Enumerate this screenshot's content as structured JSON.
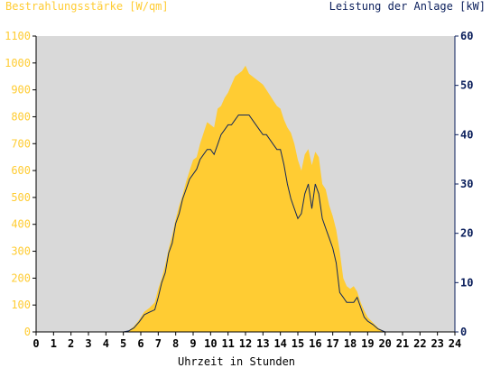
{
  "chart_data": {
    "type": "area",
    "title_left": "Bestrahlungsstärke [W/qm]",
    "title_right": "Leistung der Anlage [kW]",
    "xlabel": "Uhrzeit in Stunden",
    "x_ticks": [
      "0",
      "1",
      "2",
      "3",
      "4",
      "5",
      "6",
      "7",
      "8",
      "9",
      "10",
      "11",
      "12",
      "13",
      "14",
      "15",
      "16",
      "17",
      "18",
      "19",
      "20",
      "21",
      "22",
      "23",
      "24"
    ],
    "xlim": [
      0,
      24
    ],
    "y_left": {
      "ticks": [
        "0",
        "100",
        "200",
        "300",
        "400",
        "500",
        "600",
        "700",
        "800",
        "900",
        "1000",
        "1100"
      ],
      "lim": [
        0,
        1100
      ],
      "color": "#ffcc33"
    },
    "y_right": {
      "ticks": [
        "0",
        "10",
        "20",
        "30",
        "40",
        "50",
        "60"
      ],
      "lim": [
        0,
        60
      ],
      "color": "#0b1f5c"
    },
    "colors": {
      "plot_bg": "#d9d9d9",
      "area": "#ffcc33",
      "line": "#14285a"
    },
    "series": [
      {
        "axis": "left",
        "style": "area",
        "x": [
          0,
          5.0,
          5.3,
          5.6,
          5.9,
          6.2,
          6.5,
          6.8,
          7.0,
          7.2,
          7.4,
          7.6,
          7.8,
          8.0,
          8.2,
          8.4,
          8.6,
          8.8,
          9.0,
          9.2,
          9.4,
          9.6,
          9.8,
          10.0,
          10.2,
          10.4,
          10.6,
          10.8,
          11.0,
          11.2,
          11.4,
          11.6,
          11.8,
          12.0,
          12.2,
          12.4,
          12.6,
          12.8,
          13.0,
          13.2,
          13.4,
          13.6,
          13.8,
          14.0,
          14.2,
          14.4,
          14.6,
          14.8,
          15.0,
          15.2,
          15.4,
          15.6,
          15.8,
          16.0,
          16.2,
          16.4,
          16.6,
          16.8,
          17.0,
          17.2,
          17.4,
          17.6,
          17.8,
          18.0,
          18.2,
          18.4,
          18.6,
          18.8,
          19.0,
          19.3,
          19.6,
          20.0,
          24
        ],
        "values": [
          0,
          0,
          5,
          20,
          45,
          75,
          90,
          110,
          160,
          200,
          250,
          310,
          360,
          420,
          470,
          510,
          560,
          600,
          640,
          650,
          700,
          740,
          780,
          770,
          760,
          830,
          840,
          870,
          890,
          920,
          950,
          960,
          970,
          990,
          960,
          950,
          940,
          930,
          920,
          900,
          880,
          860,
          840,
          830,
          790,
          760,
          740,
          700,
          640,
          600,
          660,
          680,
          620,
          670,
          650,
          550,
          530,
          470,
          430,
          380,
          300,
          200,
          170,
          160,
          170,
          150,
          110,
          80,
          55,
          35,
          15,
          0,
          0
        ]
      },
      {
        "axis": "right",
        "style": "line",
        "x": [
          0,
          5.0,
          5.3,
          5.6,
          5.9,
          6.2,
          6.5,
          6.8,
          7.0,
          7.2,
          7.4,
          7.6,
          7.8,
          8.0,
          8.2,
          8.4,
          8.6,
          8.8,
          9.0,
          9.2,
          9.4,
          9.6,
          9.8,
          10.0,
          10.2,
          10.4,
          10.6,
          10.8,
          11.0,
          11.2,
          11.4,
          11.6,
          11.8,
          12.0,
          12.2,
          12.4,
          12.6,
          12.8,
          13.0,
          13.2,
          13.4,
          13.6,
          13.8,
          14.0,
          14.2,
          14.4,
          14.6,
          14.8,
          15.0,
          15.2,
          15.4,
          15.6,
          15.8,
          16.0,
          16.2,
          16.4,
          16.6,
          16.8,
          17.0,
          17.2,
          17.4,
          17.6,
          17.8,
          18.0,
          18.2,
          18.4,
          18.6,
          18.8,
          19.0,
          19.3,
          19.6,
          20.0,
          24
        ],
        "values": [
          0,
          0,
          0.2,
          0.8,
          2,
          3.5,
          4,
          4.5,
          7,
          10,
          12,
          16,
          18,
          22,
          24,
          27,
          29,
          31,
          32,
          33,
          35,
          36,
          37,
          37,
          36,
          38,
          40,
          41,
          42,
          42,
          43,
          44,
          44,
          44,
          44,
          43,
          42,
          41,
          40,
          40,
          39,
          38,
          37,
          37,
          34,
          30,
          27,
          25,
          23,
          24,
          28,
          30,
          25,
          30,
          28,
          23,
          21,
          19,
          17,
          14,
          8,
          7,
          6,
          6,
          6,
          7,
          5,
          3,
          2.2,
          1.5,
          0.6,
          0,
          0
        ]
      }
    ]
  }
}
